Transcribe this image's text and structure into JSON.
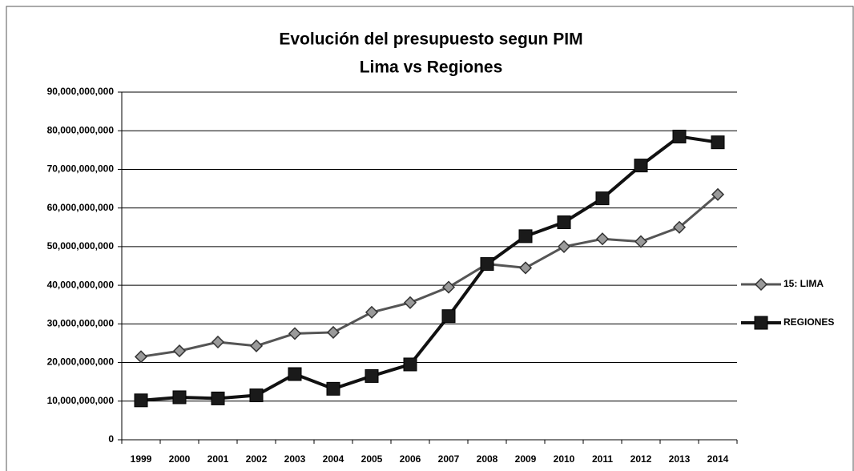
{
  "chart_data": {
    "type": "line",
    "title": "Evolución del presupuesto segun PIM",
    "subtitle": "Lima vs Regiones",
    "categories": [
      "1999",
      "2000",
      "2001",
      "2002",
      "2003",
      "2004",
      "2005",
      "2006",
      "2007",
      "2008",
      "2009",
      "2010",
      "2011",
      "2012",
      "2013",
      "2014"
    ],
    "series": [
      {
        "name": "15: LIMA",
        "color": "#9a9a9a",
        "marker": "diamond",
        "values": [
          21500000000,
          23000000000,
          25300000000,
          24300000000,
          27500000000,
          27800000000,
          33000000000,
          35500000000,
          39500000000,
          45500000000,
          44500000000,
          50000000000,
          52000000000,
          51300000000,
          55000000000,
          63500000000
        ]
      },
      {
        "name": "REGIONES",
        "color": "#1a1a1a",
        "marker": "square",
        "values": [
          10200000000,
          11000000000,
          10700000000,
          11500000000,
          17000000000,
          13200000000,
          16500000000,
          19500000000,
          32000000000,
          45500000000,
          52700000000,
          56300000000,
          62500000000,
          71000000000,
          78500000000,
          77000000000
        ]
      }
    ],
    "ylim": [
      0,
      90000000000
    ],
    "yticks": [
      0,
      {
        "value": 10000000000,
        "label": "10,000,000,000"
      },
      {
        "value": 20000000000,
        "label": "20,000,000,000"
      },
      {
        "value": 30000000000,
        "label": "30,000,000,000"
      },
      {
        "value": 40000000000,
        "label": "40,000,000,000"
      },
      {
        "value": 50000000000,
        "label": "50,000,000,000"
      },
      {
        "value": 60000000000,
        "label": "60,000,000,000"
      },
      {
        "value": 70000000000,
        "label": "70,000,000,000"
      },
      {
        "value": 80000000000,
        "label": "80,000,000,000"
      },
      {
        "value": 90000000000,
        "label": "90,000,000,000"
      }
    ],
    "grid": true,
    "legend": "right"
  }
}
